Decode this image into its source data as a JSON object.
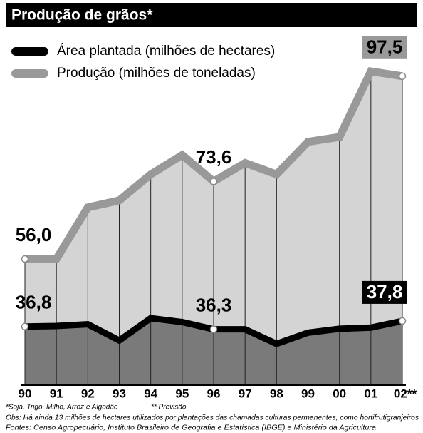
{
  "chart_data": {
    "type": "line",
    "title": "Produção de grãos*",
    "categories": [
      "90",
      "91",
      "92",
      "93",
      "94",
      "95",
      "96",
      "97",
      "98",
      "99",
      "00",
      "01",
      "02**"
    ],
    "series": [
      {
        "name": "Área plantada (milhões de hectares)",
        "color": "#000000",
        "values": [
          36.8,
          36.9,
          37.2,
          34.3,
          38.3,
          37.6,
          36.3,
          36.3,
          33.7,
          35.7,
          36.4,
          36.6,
          37.8
        ],
        "value_labels": [
          "36,8",
          null,
          null,
          null,
          null,
          null,
          "36,3",
          null,
          null,
          null,
          null,
          null,
          "37,8"
        ]
      },
      {
        "name": "Produção (milhões de toneladas)",
        "color": "#999999",
        "values": [
          56.0,
          56.0,
          67.7,
          69.3,
          75.2,
          79.6,
          73.6,
          77.8,
          75.2,
          82.6,
          83.7,
          98.6,
          97.5
        ],
        "value_labels": [
          "56,0",
          null,
          null,
          null,
          null,
          null,
          "73,6",
          null,
          null,
          null,
          null,
          null,
          "97,5"
        ]
      }
    ],
    "footnotes": [
      "*Soja, Trigo, Milho, Arroz e Algodão",
      "** Previsão",
      "Obs: Há ainda 13 milhões de hectares utilizados por plantações das chamadas culturas permanentes, como hortifrutigranjeiros",
      "Fontes: Censo Agropecuário, Instituto Brasileiro de Geografia e Estatística (IBGE) e Ministério da Agricultura"
    ]
  }
}
